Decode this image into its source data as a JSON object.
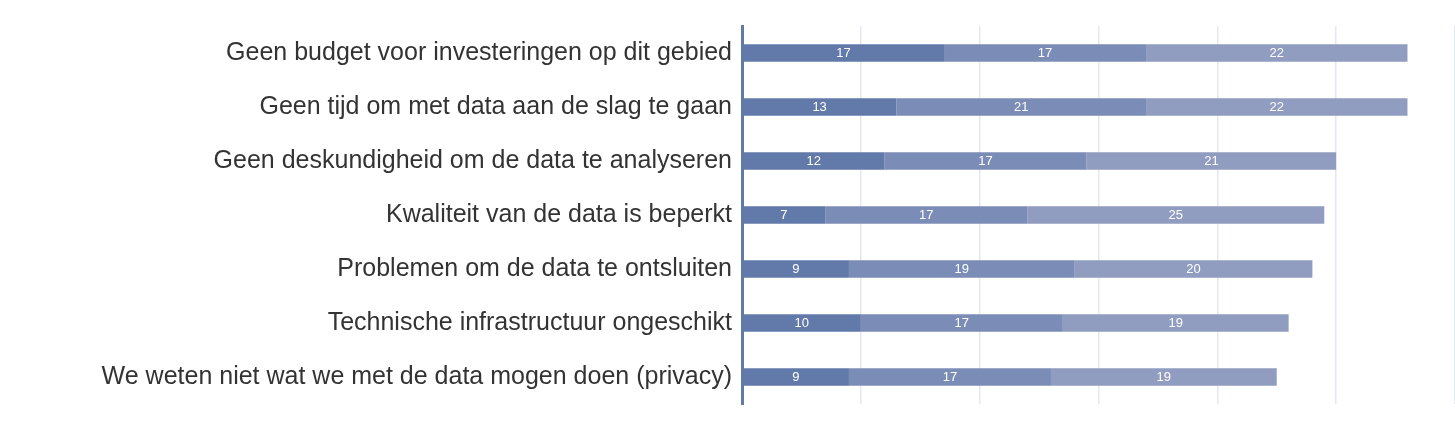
{
  "chart_data": {
    "type": "bar",
    "orientation": "horizontal",
    "stacked": true,
    "categories": [
      "Geen budget voor investeringen op dit gebied",
      "Geen tijd om met data aan de slag te gaan",
      "Geen deskundigheid om de data te analyseren",
      "Kwaliteit van de data is beperkt",
      "Problemen om de data te ontsluiten",
      "Technische infrastructuur ongeschikt",
      "We weten niet wat we met de data mogen doen (privacy)"
    ],
    "series": [
      {
        "color": "#627aa9",
        "values": [
          17,
          13,
          12,
          7,
          9,
          10,
          9
        ]
      },
      {
        "color": "#7b8db7",
        "values": [
          17,
          21,
          17,
          17,
          19,
          17,
          17
        ]
      },
      {
        "color": "#909dc0",
        "values": [
          22,
          22,
          21,
          25,
          20,
          19,
          19
        ]
      }
    ],
    "grid": "x",
    "tick_labels": "y",
    "legend": false,
    "data_labels": true
  }
}
